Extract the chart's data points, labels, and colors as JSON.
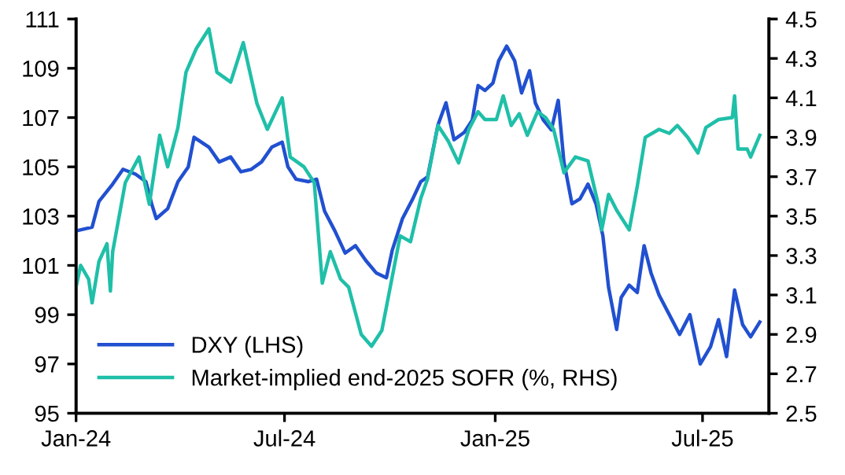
{
  "chart_data": {
    "type": "line",
    "xlim": [
      "2024-01-01",
      "2025-08-28"
    ],
    "xticks": [
      {
        "value": "2024-01-01",
        "label": "Jan-24"
      },
      {
        "value": "2024-07-01",
        "label": "Jul-24"
      },
      {
        "value": "2025-01-01",
        "label": "Jan-25"
      },
      {
        "value": "2025-07-01",
        "label": "Jul-25"
      }
    ],
    "ylim": [
      95,
      111
    ],
    "yticks": [
      95,
      97,
      99,
      101,
      103,
      105,
      107,
      109,
      111
    ],
    "y2lim": [
      2.5,
      4.5
    ],
    "y2ticks": [
      2.5,
      2.7,
      2.9,
      3.1,
      3.3,
      3.5,
      3.7,
      3.9,
      4.1,
      4.3,
      4.5
    ],
    "grid": false,
    "legend": "bottom left",
    "marker": "none",
    "line_style": "solid",
    "series": [
      {
        "name": "DXY (LHS)",
        "color": "#2150d0",
        "x": [
          "2024-01-01",
          "2024-01-15",
          "2024-01-21",
          "2024-02-02",
          "2024-02-11",
          "2024-02-22",
          "2024-03-02",
          "2024-03-07",
          "2024-03-11",
          "2024-03-21",
          "2024-03-30",
          "2024-04-08",
          "2024-04-13",
          "2024-04-26",
          "2024-05-05",
          "2024-05-15",
          "2024-05-24",
          "2024-06-02",
          "2024-06-11",
          "2024-06-20",
          "2024-06-29",
          "2024-07-04",
          "2024-07-11",
          "2024-07-22",
          "2024-07-29",
          "2024-08-05",
          "2024-08-14",
          "2024-08-23",
          "2024-09-01",
          "2024-09-10",
          "2024-09-19",
          "2024-09-28",
          "2024-10-03",
          "2024-10-12",
          "2024-10-21",
          "2024-10-28",
          "2024-11-03",
          "2024-11-12",
          "2024-11-19",
          "2024-11-26",
          "2024-12-05",
          "2024-12-12",
          "2024-12-17",
          "2024-12-23",
          "2024-12-30",
          "2025-01-04",
          "2025-01-11",
          "2025-01-18",
          "2025-01-24",
          "2025-01-31",
          "2025-02-05",
          "2025-02-12",
          "2025-02-19",
          "2025-02-25",
          "2025-03-02",
          "2025-03-09",
          "2025-03-16",
          "2025-03-23",
          "2025-03-30",
          "2025-04-05",
          "2025-04-10",
          "2025-04-17",
          "2025-04-21",
          "2025-04-28",
          "2025-05-05",
          "2025-05-11",
          "2025-05-17",
          "2025-05-24",
          "2025-06-02",
          "2025-06-11",
          "2025-06-20",
          "2025-06-29",
          "2025-07-08",
          "2025-07-15",
          "2025-07-22",
          "2025-07-29",
          "2025-08-05",
          "2025-08-12",
          "2025-08-20"
        ],
        "values": [
          102.4,
          102.55,
          103.6,
          104.3,
          104.9,
          104.7,
          104.4,
          103.5,
          102.9,
          103.3,
          104.4,
          105.0,
          106.2,
          105.8,
          105.2,
          105.4,
          104.8,
          104.9,
          105.2,
          105.8,
          106.0,
          105.0,
          104.5,
          104.4,
          104.5,
          103.2,
          102.4,
          101.5,
          101.8,
          101.2,
          100.7,
          100.5,
          101.6,
          102.9,
          103.7,
          104.4,
          104.6,
          106.7,
          107.6,
          106.1,
          106.4,
          106.9,
          108.3,
          108.1,
          108.4,
          109.3,
          109.9,
          109.3,
          108.0,
          108.9,
          107.6,
          106.9,
          106.5,
          107.7,
          105.2,
          103.5,
          103.7,
          104.3,
          103.5,
          102.2,
          100.1,
          98.4,
          99.7,
          100.2,
          99.9,
          101.8,
          100.7,
          99.8,
          99.0,
          98.2,
          99.0,
          97.0,
          97.7,
          98.8,
          97.3,
          100.0,
          98.6,
          98.1,
          98.7
        ]
      },
      {
        "name": "Market-implied end-2025 SOFR (%, RHS)",
        "color": "#1fbfa8",
        "axis": "y2",
        "x": [
          "2024-01-01",
          "2024-01-05",
          "2024-01-12",
          "2024-01-15",
          "2024-01-21",
          "2024-01-28",
          "2024-01-31",
          "2024-02-02",
          "2024-02-13",
          "2024-02-25",
          "2024-03-05",
          "2024-03-14",
          "2024-03-21",
          "2024-03-30",
          "2024-04-06",
          "2024-04-15",
          "2024-04-26",
          "2024-05-03",
          "2024-05-15",
          "2024-05-26",
          "2024-06-07",
          "2024-06-16",
          "2024-06-29",
          "2024-07-06",
          "2024-07-18",
          "2024-07-27",
          "2024-08-03",
          "2024-08-10",
          "2024-08-19",
          "2024-08-26",
          "2024-09-06",
          "2024-09-15",
          "2024-09-24",
          "2024-10-01",
          "2024-10-10",
          "2024-10-19",
          "2024-10-28",
          "2024-11-03",
          "2024-11-12",
          "2024-11-21",
          "2024-11-30",
          "2024-12-09",
          "2024-12-17",
          "2024-12-23",
          "2025-01-02",
          "2025-01-08",
          "2025-01-15",
          "2025-01-22",
          "2025-01-29",
          "2025-02-07",
          "2025-02-14",
          "2025-02-21",
          "2025-03-02",
          "2025-03-12",
          "2025-03-23",
          "2025-04-01",
          "2025-04-04",
          "2025-04-10",
          "2025-04-17",
          "2025-04-28",
          "2025-05-05",
          "2025-05-12",
          "2025-05-24",
          "2025-06-02",
          "2025-06-09",
          "2025-06-18",
          "2025-06-27",
          "2025-07-04",
          "2025-07-15",
          "2025-07-27",
          "2025-07-29",
          "2025-08-01",
          "2025-08-09",
          "2025-08-12",
          "2025-08-20"
        ],
        "values": [
          3.14,
          3.25,
          3.18,
          3.06,
          3.27,
          3.36,
          3.12,
          3.32,
          3.67,
          3.8,
          3.56,
          3.91,
          3.75,
          3.95,
          4.23,
          4.35,
          4.45,
          4.23,
          4.18,
          4.38,
          4.07,
          3.94,
          4.1,
          3.8,
          3.75,
          3.67,
          3.16,
          3.32,
          3.18,
          3.14,
          2.9,
          2.84,
          2.92,
          3.13,
          3.4,
          3.37,
          3.59,
          3.69,
          3.96,
          3.88,
          3.77,
          3.94,
          4.03,
          3.99,
          3.99,
          4.11,
          3.96,
          4.02,
          3.91,
          4.03,
          4.0,
          3.94,
          3.72,
          3.8,
          3.78,
          3.56,
          3.43,
          3.61,
          3.53,
          3.43,
          3.65,
          3.9,
          3.94,
          3.92,
          3.96,
          3.9,
          3.82,
          3.95,
          3.99,
          4.0,
          4.11,
          3.84,
          3.84,
          3.8,
          3.91
        ]
      }
    ]
  }
}
